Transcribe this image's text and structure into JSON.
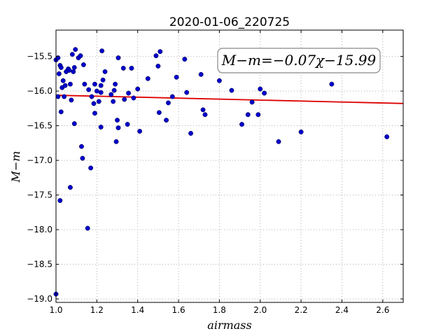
{
  "chart_data": {
    "type": "scatter",
    "title": "2020-01-06_220725",
    "xlabel": "airmass",
    "ylabel": "M−m",
    "xlim": [
      1.0,
      2.7
    ],
    "ylim": [
      -19.05,
      -15.12
    ],
    "y_inverted": true,
    "grid": true,
    "x_ticks": [
      1.0,
      1.2,
      1.4,
      1.6,
      1.8,
      2.0,
      2.2,
      2.4,
      2.6
    ],
    "x_tick_labels": [
      "1.0",
      "1.2",
      "1.4",
      "1.6",
      "1.8",
      "2.0",
      "2.2",
      "2.4",
      "2.6"
    ],
    "y_ticks": [
      -15.5,
      -16.0,
      -16.5,
      -17.0,
      -17.5,
      -18.0,
      -18.5,
      -19.0
    ],
    "y_tick_labels": [
      "−15.5",
      "−16.0",
      "−16.5",
      "−17.0",
      "−17.5",
      "−18.0",
      "−18.5",
      "−19.0"
    ],
    "annotation": "M−m=−0.07χ−15.99",
    "colors": {
      "points": "#0000cc",
      "fit_line": "#dd0000"
    },
    "fit": {
      "slope": -0.07,
      "intercept": -15.99,
      "x_range": [
        1.0,
        2.7
      ]
    },
    "series": [
      {
        "name": "",
        "points": [
          [
            1.0,
            -18.93
          ],
          [
            1.0,
            -15.55
          ],
          [
            1.01,
            -15.52
          ],
          [
            1.01,
            -16.08
          ],
          [
            1.015,
            -15.75
          ],
          [
            1.02,
            -17.58
          ],
          [
            1.02,
            -15.63
          ],
          [
            1.025,
            -16.3
          ],
          [
            1.025,
            -15.66
          ],
          [
            1.03,
            -15.95
          ],
          [
            1.035,
            -15.85
          ],
          [
            1.04,
            -16.08
          ],
          [
            1.045,
            -15.92
          ],
          [
            1.05,
            -15.72
          ],
          [
            1.06,
            -15.68
          ],
          [
            1.065,
            -15.7
          ],
          [
            1.07,
            -17.39
          ],
          [
            1.07,
            -15.9
          ],
          [
            1.075,
            -16.13
          ],
          [
            1.08,
            -15.47
          ],
          [
            1.085,
            -15.72
          ],
          [
            1.09,
            -16.47
          ],
          [
            1.09,
            -15.66
          ],
          [
            1.095,
            -15.4
          ],
          [
            1.11,
            -15.52
          ],
          [
            1.12,
            -15.49
          ],
          [
            1.125,
            -16.8
          ],
          [
            1.13,
            -16.97
          ],
          [
            1.135,
            -15.62
          ],
          [
            1.14,
            -15.9
          ],
          [
            1.155,
            -17.98
          ],
          [
            1.16,
            -15.98
          ],
          [
            1.17,
            -17.11
          ],
          [
            1.175,
            -16.08
          ],
          [
            1.185,
            -16.18
          ],
          [
            1.19,
            -15.9
          ],
          [
            1.19,
            -16.32
          ],
          [
            1.2,
            -16.0
          ],
          [
            1.21,
            -16.15
          ],
          [
            1.22,
            -16.52
          ],
          [
            1.22,
            -16.02
          ],
          [
            1.22,
            -15.92
          ],
          [
            1.225,
            -15.42
          ],
          [
            1.23,
            -15.84
          ],
          [
            1.24,
            -15.72
          ],
          [
            1.27,
            -16.05
          ],
          [
            1.28,
            -16.15
          ],
          [
            1.285,
            -15.99
          ],
          [
            1.29,
            -15.9
          ],
          [
            1.295,
            -16.73
          ],
          [
            1.3,
            -16.42
          ],
          [
            1.305,
            -16.53
          ],
          [
            1.305,
            -15.52
          ],
          [
            1.33,
            -15.67
          ],
          [
            1.335,
            -16.12
          ],
          [
            1.35,
            -16.48
          ],
          [
            1.355,
            -16.03
          ],
          [
            1.37,
            -15.67
          ],
          [
            1.38,
            -16.1
          ],
          [
            1.4,
            -15.97
          ],
          [
            1.41,
            -16.58
          ],
          [
            1.45,
            -15.82
          ],
          [
            1.49,
            -15.49
          ],
          [
            1.5,
            -15.64
          ],
          [
            1.505,
            -16.31
          ],
          [
            1.51,
            -15.43
          ],
          [
            1.54,
            -16.42
          ],
          [
            1.55,
            -16.17
          ],
          [
            1.57,
            -16.08
          ],
          [
            1.59,
            -15.8
          ],
          [
            1.63,
            -15.54
          ],
          [
            1.64,
            -16.02
          ],
          [
            1.66,
            -16.61
          ],
          [
            1.71,
            -15.76
          ],
          [
            1.72,
            -16.27
          ],
          [
            1.73,
            -16.34
          ],
          [
            1.8,
            -15.85
          ],
          [
            1.86,
            -15.99
          ],
          [
            1.91,
            -16.48
          ],
          [
            1.94,
            -16.34
          ],
          [
            1.96,
            -16.16
          ],
          [
            1.99,
            -16.34
          ],
          [
            2.0,
            -15.97
          ],
          [
            2.02,
            -16.03
          ],
          [
            2.09,
            -16.73
          ],
          [
            2.2,
            -16.59
          ],
          [
            2.35,
            -15.9
          ],
          [
            2.62,
            -16.66
          ]
        ]
      }
    ]
  }
}
